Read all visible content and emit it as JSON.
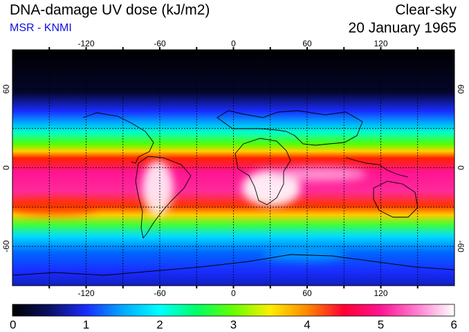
{
  "header": {
    "title": "DNA-damage UV dose (kJ/m2)",
    "subtitle": "MSR - KNMI",
    "variant": "Clear-sky",
    "date": "20 January 1965"
  },
  "map": {
    "projection": "equirectangular",
    "lon_range": [
      -180,
      180
    ],
    "lat_range": [
      -90,
      90
    ],
    "grid_lines": true,
    "lon_ticks": [
      -120,
      -60,
      0,
      60,
      120
    ],
    "lat_ticks": [
      60,
      0,
      -60
    ],
    "lon_tick_labels": [
      "-120",
      "-60",
      "0",
      "60",
      "120"
    ],
    "lat_tick_labels": [
      "60",
      "0",
      "-60"
    ]
  },
  "colorbar": {
    "min": 0,
    "max": 6,
    "tick_labels": [
      "0",
      "1",
      "2",
      "3",
      "4",
      "5",
      "6"
    ],
    "colors": [
      {
        "value": 0.0,
        "color": "#000000"
      },
      {
        "value": 0.5,
        "color": "#0a1060"
      },
      {
        "value": 1.0,
        "color": "#1a2cff"
      },
      {
        "value": 1.5,
        "color": "#00aaff"
      },
      {
        "value": 2.0,
        "color": "#00ffff"
      },
      {
        "value": 2.5,
        "color": "#00ff66"
      },
      {
        "value": 3.0,
        "color": "#66ff00"
      },
      {
        "value": 3.5,
        "color": "#ffee00"
      },
      {
        "value": 4.0,
        "color": "#ff8800"
      },
      {
        "value": 4.5,
        "color": "#ff0033"
      },
      {
        "value": 5.0,
        "color": "#ff1493"
      },
      {
        "value": 5.5,
        "color": "#ff80d0"
      },
      {
        "value": 6.0,
        "color": "#ffffff"
      }
    ]
  }
}
